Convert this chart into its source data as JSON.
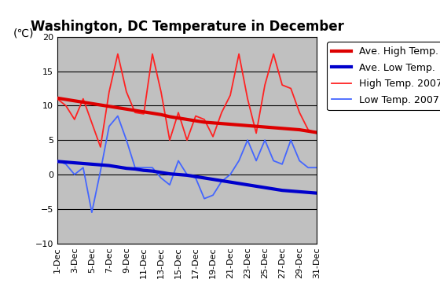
{
  "title": "Washington, DC Temperature in December",
  "ylabel": "(℃)",
  "days": [
    1,
    2,
    3,
    4,
    5,
    6,
    7,
    8,
    9,
    10,
    11,
    12,
    13,
    14,
    15,
    16,
    17,
    18,
    19,
    20,
    21,
    22,
    23,
    24,
    25,
    26,
    27,
    28,
    29,
    30,
    31
  ],
  "x_labels": [
    "1-Dec",
    "3-Dec",
    "5-Dec",
    "7-Dec",
    "9-Dec",
    "11-Dec",
    "13-Dec",
    "15-Dec",
    "17-Dec",
    "19-Dec",
    "21-Dec",
    "23-Dec",
    "25-Dec",
    "27-Dec",
    "29-Dec",
    "31-Dec"
  ],
  "x_label_days": [
    1,
    3,
    5,
    7,
    9,
    11,
    13,
    15,
    17,
    19,
    21,
    23,
    25,
    27,
    29,
    31
  ],
  "ave_high": [
    11.1,
    10.9,
    10.7,
    10.5,
    10.3,
    10.1,
    9.9,
    9.7,
    9.5,
    9.3,
    9.1,
    8.9,
    8.7,
    8.4,
    8.2,
    8.0,
    7.8,
    7.6,
    7.5,
    7.4,
    7.3,
    7.2,
    7.1,
    7.0,
    6.9,
    6.8,
    6.7,
    6.6,
    6.5,
    6.3,
    6.1
  ],
  "ave_low": [
    1.9,
    1.8,
    1.7,
    1.6,
    1.5,
    1.4,
    1.3,
    1.1,
    0.9,
    0.8,
    0.6,
    0.5,
    0.3,
    0.1,
    0.0,
    -0.1,
    -0.3,
    -0.5,
    -0.7,
    -0.9,
    -1.1,
    -1.3,
    -1.5,
    -1.7,
    -1.9,
    -2.1,
    -2.3,
    -2.4,
    -2.5,
    -2.6,
    -2.7
  ],
  "high_2007": [
    11,
    10,
    8,
    11,
    7.5,
    4,
    12,
    17.5,
    12,
    9,
    8.8,
    17.5,
    12,
    5,
    9,
    5,
    8.5,
    8,
    5.5,
    9,
    11.5,
    17.5,
    11,
    6,
    13,
    17.5,
    13,
    12.5,
    9,
    6.5,
    6
  ],
  "low_2007": [
    2,
    1.5,
    0,
    1,
    -5.5,
    0.5,
    7,
    8.5,
    5,
    1,
    1,
    1,
    -0.5,
    -1.5,
    2,
    0,
    -0.5,
    -3.5,
    -3,
    -1,
    0,
    2,
    5,
    2,
    5,
    2,
    1.5,
    5,
    2,
    1,
    1
  ],
  "ylim": [
    -10,
    20
  ],
  "yticks": [
    -10,
    -5,
    0,
    5,
    10,
    15,
    20
  ],
  "background_color": "#c0c0c0",
  "plot_bg": "#c8c8c8",
  "ave_high_color": "#dd0000",
  "ave_low_color": "#0000cc",
  "high_2007_color": "#ff2222",
  "low_2007_color": "#4466ff",
  "ave_high_lw": 3.0,
  "ave_low_lw": 3.0,
  "high_2007_lw": 1.3,
  "low_2007_lw": 1.3,
  "grid_color": "#000000",
  "grid_lw": 0.8,
  "title_fontsize": 12,
  "tick_fontsize": 8,
  "legend_fontsize": 9
}
